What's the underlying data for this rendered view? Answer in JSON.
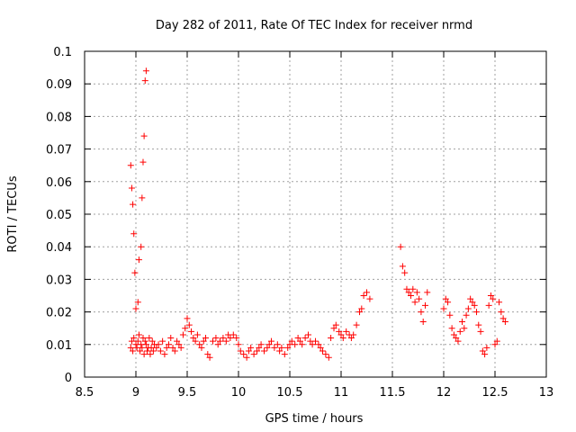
{
  "chart_data": {
    "type": "scatter",
    "title": "Day 282 of 2011, Rate Of TEC Index for receiver nrmd",
    "xlabel": "GPS time / hours",
    "ylabel": "ROTI / TECUs",
    "xlim": [
      8.5,
      13
    ],
    "ylim": [
      0,
      0.1
    ],
    "xticks": [
      "8.5",
      "9",
      "9.5",
      "10",
      "10.5",
      "11",
      "11.5",
      "12",
      "12.5",
      "13"
    ],
    "yticks": [
      "0",
      "0.01",
      "0.02",
      "0.03",
      "0.04",
      "0.05",
      "0.06",
      "0.07",
      "0.08",
      "0.09",
      "0.1"
    ],
    "grid": true,
    "marker": "+",
    "color": "#ff0000",
    "series": [
      {
        "x": [
          8.95,
          8.96,
          8.97,
          8.98,
          9.0,
          9.01,
          9.02,
          9.03,
          9.04,
          9.05,
          9.06,
          9.07,
          9.08,
          9.09,
          9.1,
          9.11,
          9.12,
          9.13,
          9.14,
          9.15,
          9.16,
          9.17,
          9.18,
          9.2,
          9.22,
          9.24,
          9.26,
          9.28,
          9.3,
          9.32,
          9.34,
          9.36,
          9.38,
          9.4,
          9.42,
          9.44,
          9.46,
          9.48,
          9.5,
          9.52,
          9.54,
          9.56,
          9.58,
          9.6,
          9.62,
          9.64,
          9.66,
          9.68,
          9.7,
          9.72,
          9.75,
          9.78,
          9.8,
          9.82,
          9.85,
          9.88,
          9.9,
          9.92,
          9.95,
          9.98,
          10.0,
          10.02,
          10.05,
          10.08,
          10.1,
          10.12,
          10.15,
          10.18,
          10.2,
          10.22,
          10.25,
          10.28,
          10.3,
          10.32,
          10.35,
          10.38,
          10.4,
          10.42,
          10.45,
          10.48,
          10.5,
          10.52,
          10.55,
          10.58,
          10.6,
          10.62,
          10.65,
          10.68,
          10.7,
          10.72,
          10.75,
          10.78,
          10.8,
          10.82,
          10.85,
          10.88,
          10.9,
          10.93,
          10.95,
          10.98,
          11.0,
          11.02,
          11.05,
          11.08,
          11.1,
          11.12,
          11.15,
          11.18,
          11.2,
          11.22,
          11.25,
          11.28,
          11.58,
          11.6,
          11.62,
          11.64,
          11.66,
          11.68,
          11.7,
          11.72,
          11.74,
          11.76,
          11.78,
          11.8,
          11.82,
          11.84,
          12.0,
          12.02,
          12.04,
          12.06,
          12.08,
          12.1,
          12.12,
          12.14,
          12.16,
          12.18,
          12.2,
          12.22,
          12.24,
          12.26,
          12.28,
          12.3,
          12.32,
          12.34,
          12.36,
          12.38,
          12.4,
          12.42,
          12.44,
          12.46,
          12.48,
          12.5,
          12.52,
          12.54,
          12.56,
          12.58,
          12.6
        ],
        "y": [
          0.009,
          0.011,
          0.008,
          0.012,
          0.01,
          0.009,
          0.011,
          0.013,
          0.008,
          0.01,
          0.009,
          0.012,
          0.007,
          0.011,
          0.01,
          0.008,
          0.009,
          0.012,
          0.007,
          0.009,
          0.011,
          0.008,
          0.01,
          0.009,
          0.01,
          0.008,
          0.011,
          0.007,
          0.009,
          0.01,
          0.012,
          0.009,
          0.008,
          0.011,
          0.01,
          0.009,
          0.013,
          0.015,
          0.018,
          0.016,
          0.014,
          0.012,
          0.011,
          0.013,
          0.01,
          0.009,
          0.011,
          0.012,
          0.007,
          0.006,
          0.011,
          0.012,
          0.01,
          0.011,
          0.012,
          0.011,
          0.013,
          0.012,
          0.013,
          0.012,
          0.01,
          0.008,
          0.007,
          0.006,
          0.008,
          0.009,
          0.007,
          0.008,
          0.009,
          0.01,
          0.008,
          0.009,
          0.01,
          0.011,
          0.009,
          0.01,
          0.008,
          0.009,
          0.007,
          0.009,
          0.01,
          0.011,
          0.01,
          0.012,
          0.011,
          0.01,
          0.012,
          0.013,
          0.011,
          0.01,
          0.011,
          0.01,
          0.009,
          0.008,
          0.007,
          0.006,
          0.012,
          0.015,
          0.016,
          0.014,
          0.013,
          0.012,
          0.014,
          0.013,
          0.012,
          0.013,
          0.016,
          0.02,
          0.021,
          0.025,
          0.026,
          0.024,
          0.04,
          0.034,
          0.032,
          0.027,
          0.026,
          0.025,
          0.027,
          0.023,
          0.026,
          0.024,
          0.02,
          0.017,
          0.022,
          0.026,
          0.021,
          0.024,
          0.023,
          0.019,
          0.015,
          0.013,
          0.012,
          0.011,
          0.014,
          0.017,
          0.015,
          0.019,
          0.021,
          0.024,
          0.023,
          0.022,
          0.02,
          0.016,
          0.014,
          0.008,
          0.007,
          0.009,
          0.022,
          0.025,
          0.024,
          0.01,
          0.011,
          0.023,
          0.02,
          0.018,
          0.017
        ]
      },
      {
        "x": [
          8.95,
          8.96,
          8.97,
          8.98,
          8.99,
          9.0,
          9.02,
          9.03,
          9.05,
          9.06,
          9.07,
          9.08,
          9.09,
          9.1
        ],
        "y": [
          0.065,
          0.058,
          0.053,
          0.044,
          0.032,
          0.021,
          0.023,
          0.036,
          0.04,
          0.055,
          0.066,
          0.074,
          0.091,
          0.094
        ]
      }
    ]
  }
}
